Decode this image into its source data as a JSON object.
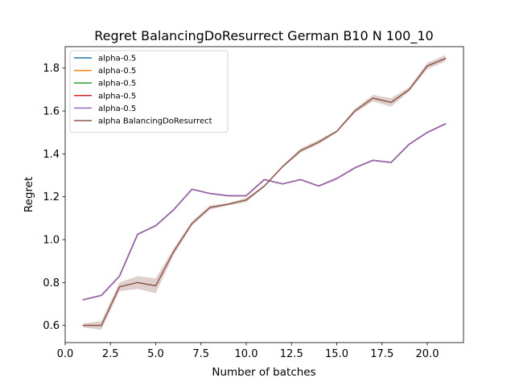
{
  "chart_data": {
    "type": "line",
    "title": "Regret BalancingDoResurrect German B10 N 100_10",
    "xlabel": "Number of batches",
    "ylabel": "Regret",
    "xlim": [
      0.0,
      22.0
    ],
    "ylim": [
      0.52,
      1.9
    ],
    "xticks": [
      0.0,
      2.5,
      5.0,
      7.5,
      10.0,
      12.5,
      15.0,
      17.5,
      20.0
    ],
    "xtick_labels": [
      "0.0",
      "2.5",
      "5.0",
      "7.5",
      "10.0",
      "12.5",
      "15.0",
      "17.5",
      "20.0"
    ],
    "yticks": [
      0.6,
      0.8,
      1.0,
      1.2,
      1.4,
      1.6,
      1.8
    ],
    "ytick_labels": [
      "0.6",
      "0.8",
      "1.0",
      "1.2",
      "1.4",
      "1.6",
      "1.8"
    ],
    "grid": false,
    "legend_position": "top-left",
    "x": [
      1,
      2,
      3,
      4,
      5,
      6,
      7,
      8,
      9,
      10,
      11,
      12,
      13,
      14,
      15,
      16,
      17,
      18,
      19,
      20,
      21
    ],
    "series": [
      {
        "name": "alpha-0.5",
        "color": "#1f77b4",
        "values": [
          0.72,
          0.74,
          0.83,
          1.025,
          1.065,
          1.14,
          1.235,
          1.215,
          1.205,
          1.205,
          1.28,
          1.26,
          1.28,
          1.25,
          1.285,
          1.335,
          1.37,
          1.36,
          1.445,
          1.5,
          1.54
        ]
      },
      {
        "name": "alpha-0.5",
        "color": "#ff7f0e",
        "values": [
          0.72,
          0.74,
          0.83,
          1.025,
          1.065,
          1.14,
          1.235,
          1.215,
          1.205,
          1.205,
          1.28,
          1.26,
          1.28,
          1.25,
          1.285,
          1.335,
          1.37,
          1.36,
          1.445,
          1.5,
          1.54
        ]
      },
      {
        "name": "alpha-0.5",
        "color": "#2ca02c",
        "values": [
          0.72,
          0.74,
          0.83,
          1.025,
          1.065,
          1.14,
          1.235,
          1.215,
          1.205,
          1.205,
          1.28,
          1.26,
          1.28,
          1.25,
          1.285,
          1.335,
          1.37,
          1.36,
          1.445,
          1.5,
          1.54
        ]
      },
      {
        "name": "alpha-0.5",
        "color": "#d62728",
        "values": [
          0.72,
          0.74,
          0.83,
          1.025,
          1.065,
          1.14,
          1.235,
          1.215,
          1.205,
          1.205,
          1.28,
          1.26,
          1.28,
          1.25,
          1.285,
          1.335,
          1.37,
          1.36,
          1.445,
          1.5,
          1.54
        ]
      },
      {
        "name": "alpha-0.5",
        "color": "#9467bd",
        "values": [
          0.72,
          0.74,
          0.83,
          1.025,
          1.065,
          1.14,
          1.235,
          1.215,
          1.205,
          1.205,
          1.28,
          1.26,
          1.28,
          1.25,
          1.285,
          1.335,
          1.37,
          1.36,
          1.445,
          1.5,
          1.54
        ]
      },
      {
        "name": "alpha BalancingDoResurrect",
        "color": "#8c564b",
        "values": [
          0.6,
          0.6,
          0.78,
          0.8,
          0.785,
          0.945,
          1.075,
          1.15,
          1.165,
          1.185,
          1.25,
          1.34,
          1.415,
          1.455,
          1.505,
          1.6,
          1.66,
          1.64,
          1.7,
          1.81,
          1.845
        ],
        "band_lower": [
          0.59,
          0.58,
          0.76,
          0.77,
          0.75,
          0.93,
          1.065,
          1.14,
          1.16,
          1.175,
          1.245,
          1.335,
          1.405,
          1.445,
          1.5,
          1.59,
          1.645,
          1.62,
          1.69,
          1.795,
          1.83
        ],
        "band_upper": [
          0.61,
          0.62,
          0.8,
          0.83,
          0.82,
          0.96,
          1.085,
          1.16,
          1.17,
          1.195,
          1.255,
          1.345,
          1.425,
          1.465,
          1.51,
          1.61,
          1.675,
          1.66,
          1.71,
          1.825,
          1.86
        ]
      }
    ]
  }
}
